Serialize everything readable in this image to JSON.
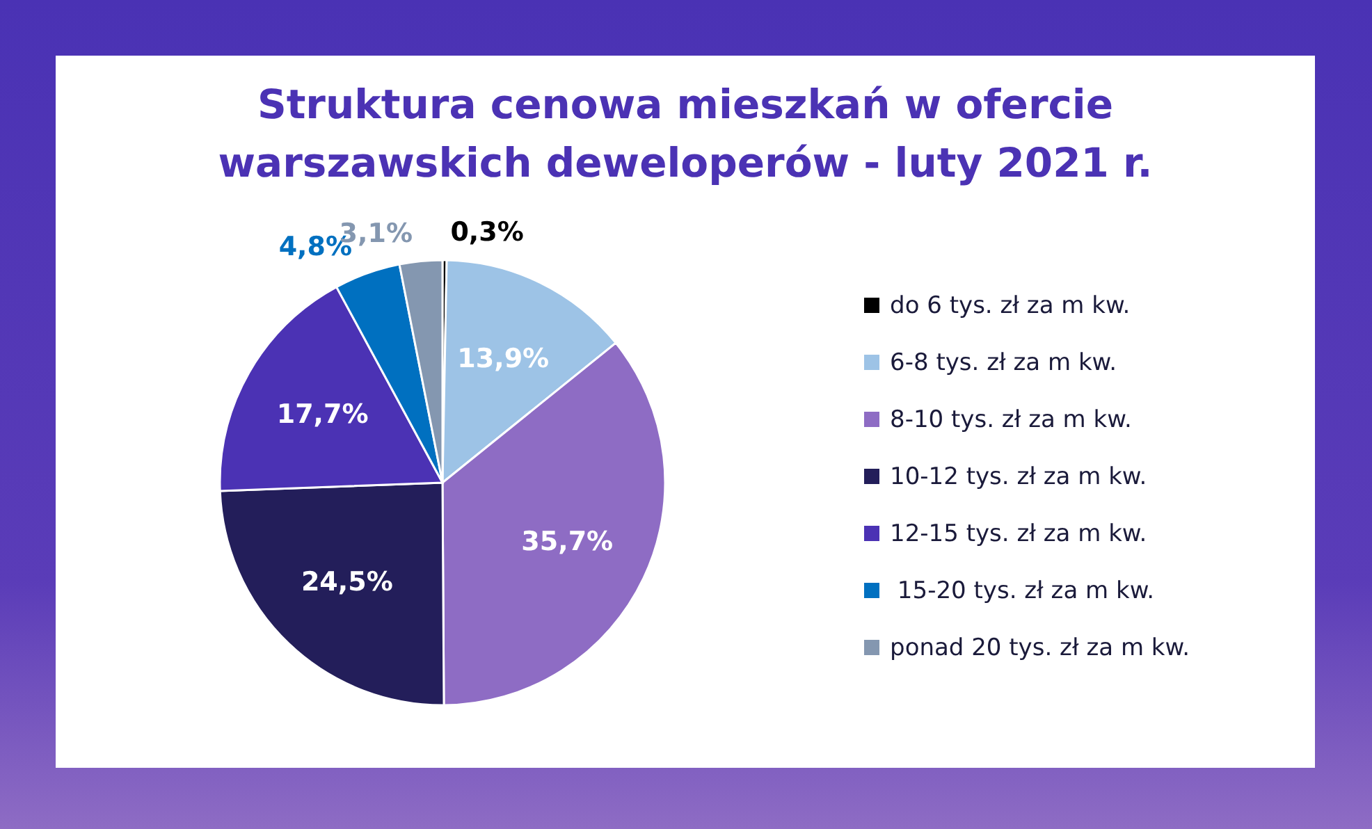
{
  "chart_data": {
    "type": "pie",
    "title": "Struktura cenowa mieszkań w ofercie warszawskich deweloperów - luty 2021 r.",
    "categories": [
      "do 6 tys. zł za m kw.",
      "6-8 tys. zł za m kw.",
      "8-10 tys. zł za m kw.",
      "10-12 tys. zł za m kw.",
      "12-15 tys. zł za m kw.",
      " 15-20 tys. zł za m kw.",
      "ponad 20 tys. zł za m kw."
    ],
    "values": [
      0.3,
      13.9,
      35.7,
      24.5,
      17.7,
      4.8,
      3.1
    ],
    "value_labels": [
      "0,3%",
      "13,9%",
      "35,7%",
      "24,5%",
      "17,7%",
      "4,8%",
      "3,1%"
    ],
    "colors": [
      "#000000",
      "#9dc3e6",
      "#8e6cc4",
      "#231e5a",
      "#4b32b4",
      "#0070c0",
      "#8497b0"
    ],
    "legend": "right"
  }
}
